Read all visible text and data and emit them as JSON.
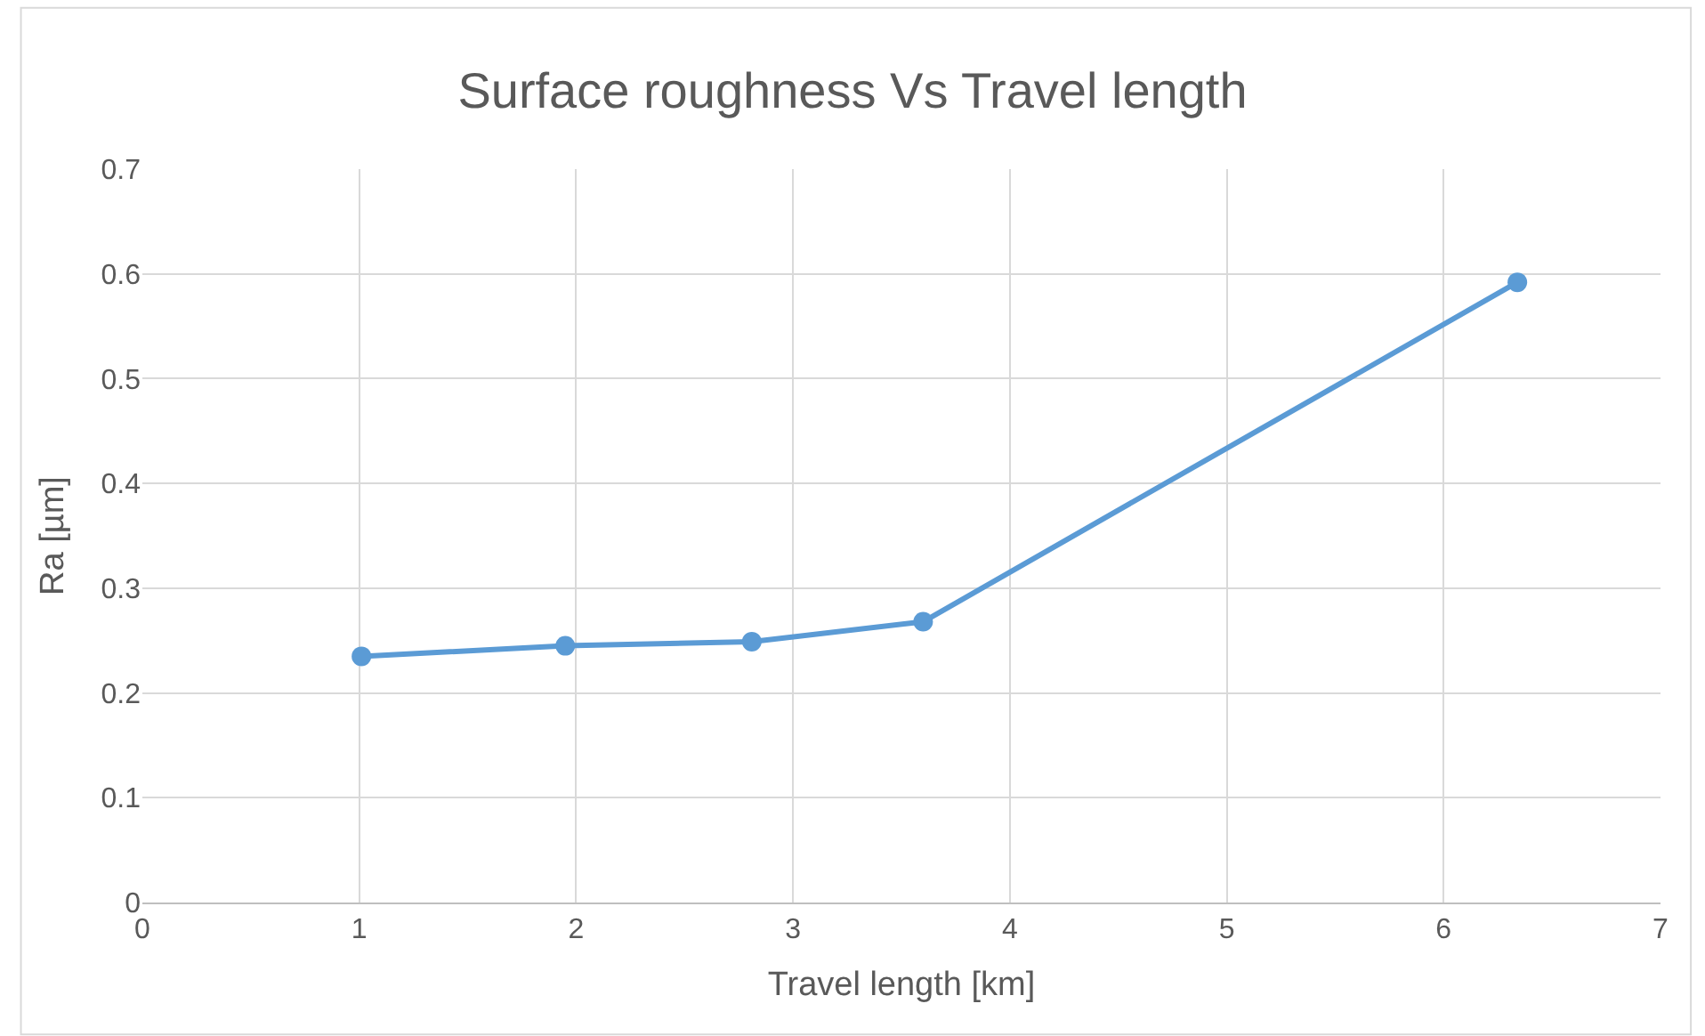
{
  "chart_data": {
    "type": "line",
    "title": "Surface roughness Vs Travel length",
    "xlabel": "Travel length [km]",
    "ylabel": "Ra [µm]",
    "x": [
      1.01,
      1.95,
      2.81,
      3.6,
      6.34
    ],
    "series": [
      {
        "color": "#5b9bd5",
        "values": [
          0.235,
          0.245,
          0.249,
          0.268,
          0.592
        ]
      }
    ],
    "xlim": [
      0,
      7
    ],
    "xticks": [
      0,
      1,
      2,
      3,
      4,
      5,
      6,
      7
    ],
    "ylim": [
      0,
      0.7
    ],
    "yticks": [
      0,
      0.1,
      0.2,
      0.3,
      0.4,
      0.5,
      0.6,
      0.7
    ],
    "grid": true,
    "legend": false,
    "marker": "circle",
    "line_style": "solid"
  }
}
